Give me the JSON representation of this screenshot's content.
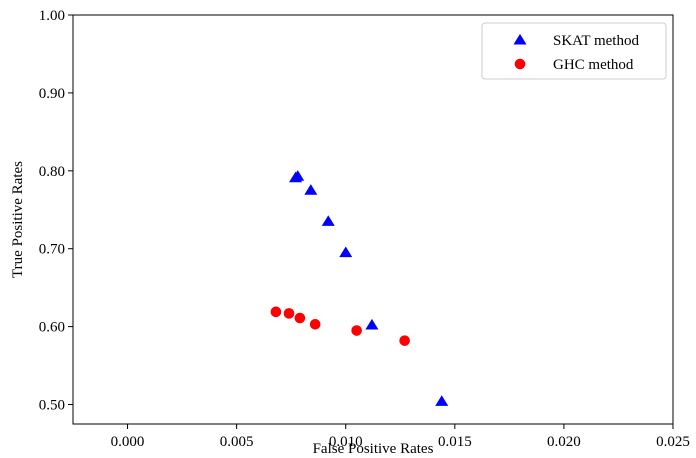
{
  "chart_data": {
    "type": "scatter",
    "title": "",
    "xlabel": "False Positive Rates",
    "ylabel": "True Positive Rates",
    "xlim": [
      -0.0025,
      0.025
    ],
    "ylim": [
      0.475,
      1.0
    ],
    "x_ticks": [
      "0.000",
      "0.005",
      "0.010",
      "0.015",
      "0.020",
      "0.025"
    ],
    "y_ticks": [
      "0.50",
      "0.60",
      "0.70",
      "0.80",
      "0.90",
      "1.00"
    ],
    "grid": false,
    "legend_position": "top-right",
    "series": [
      {
        "name": "SKAT method",
        "marker": "triangle",
        "color": "#0000ff",
        "x": [
          0.0078,
          0.0077,
          0.0084,
          0.0092,
          0.01,
          0.0112,
          0.0144
        ],
        "y": [
          0.793,
          0.791,
          0.775,
          0.735,
          0.695,
          0.602,
          0.504
        ]
      },
      {
        "name": "GHC method",
        "marker": "circle",
        "color": "#ff0000",
        "x": [
          0.0068,
          0.0074,
          0.0079,
          0.0086,
          0.0105,
          0.0127
        ],
        "y": [
          0.619,
          0.617,
          0.611,
          0.603,
          0.595,
          0.582
        ]
      }
    ]
  }
}
